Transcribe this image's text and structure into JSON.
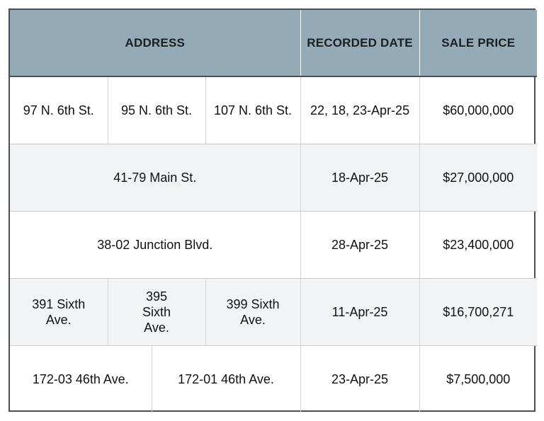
{
  "table": {
    "headers": {
      "address": "ADDRESS",
      "recorded_date": "RECORDED DATE",
      "sale_price": "SALE PRICE"
    },
    "rows": [
      {
        "addresses": [
          "97 N. 6th St.",
          "95 N. 6th St.",
          "107 N. 6th St."
        ],
        "recorded_date": "22, 18, 23-Apr-25",
        "sale_price": "$60,000,000"
      },
      {
        "addresses": [
          "41-79 Main St."
        ],
        "recorded_date": "18-Apr-25",
        "sale_price": "$27,000,000"
      },
      {
        "addresses": [
          "38-02 Junction Blvd."
        ],
        "recorded_date": "28-Apr-25",
        "sale_price": "$23,400,000"
      },
      {
        "addresses": [
          "391 Sixth Ave.",
          "395 Sixth Ave.",
          "399 Sixth Ave."
        ],
        "recorded_date": "11-Apr-25",
        "sale_price": "$16,700,271"
      },
      {
        "addresses": [
          "172-03 46th Ave.",
          "172-01 46th Ave."
        ],
        "recorded_date": "23-Apr-25",
        "sale_price": "$7,500,000"
      }
    ]
  }
}
